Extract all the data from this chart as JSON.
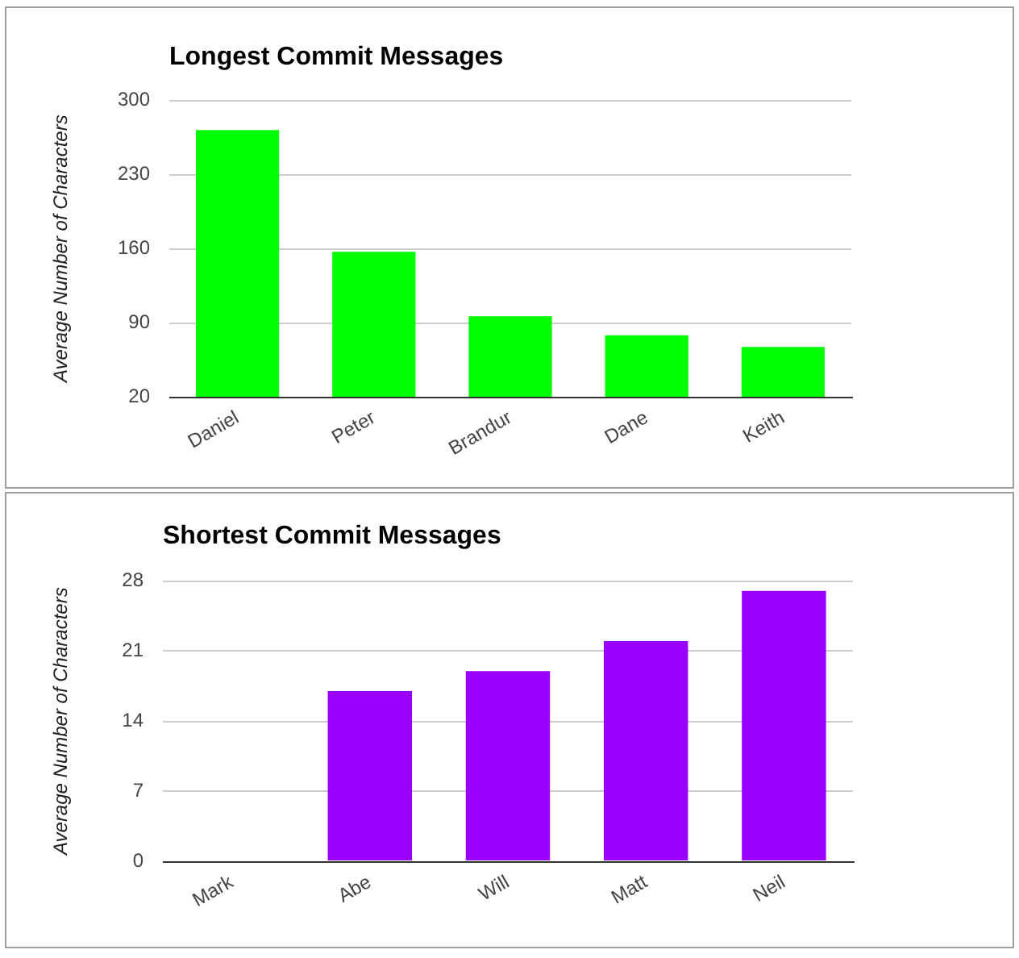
{
  "chart_data": [
    {
      "type": "bar",
      "title": "Longest Commit Messages",
      "ylabel": "Average Number of Characters",
      "categories": [
        "Daniel",
        "Peter",
        "Brandur",
        "Dane",
        "Keith"
      ],
      "values": [
        272,
        157,
        96,
        78,
        67
      ],
      "color": "#00ff00",
      "ylim": [
        20,
        300
      ],
      "yticks": [
        20,
        90,
        160,
        230,
        300
      ],
      "grid": "y",
      "legend": false
    },
    {
      "type": "bar",
      "title": "Shortest Commit Messages",
      "ylabel": "Average Number of Characters",
      "categories": [
        "Mark",
        "Abe",
        "Will",
        "Matt",
        "Neil"
      ],
      "values": [
        0,
        17,
        19,
        22,
        27
      ],
      "color": "#9900ff",
      "ylim": [
        0,
        28
      ],
      "yticks": [
        0,
        7,
        14,
        21,
        28
      ],
      "grid": "y",
      "legend": false
    }
  ]
}
